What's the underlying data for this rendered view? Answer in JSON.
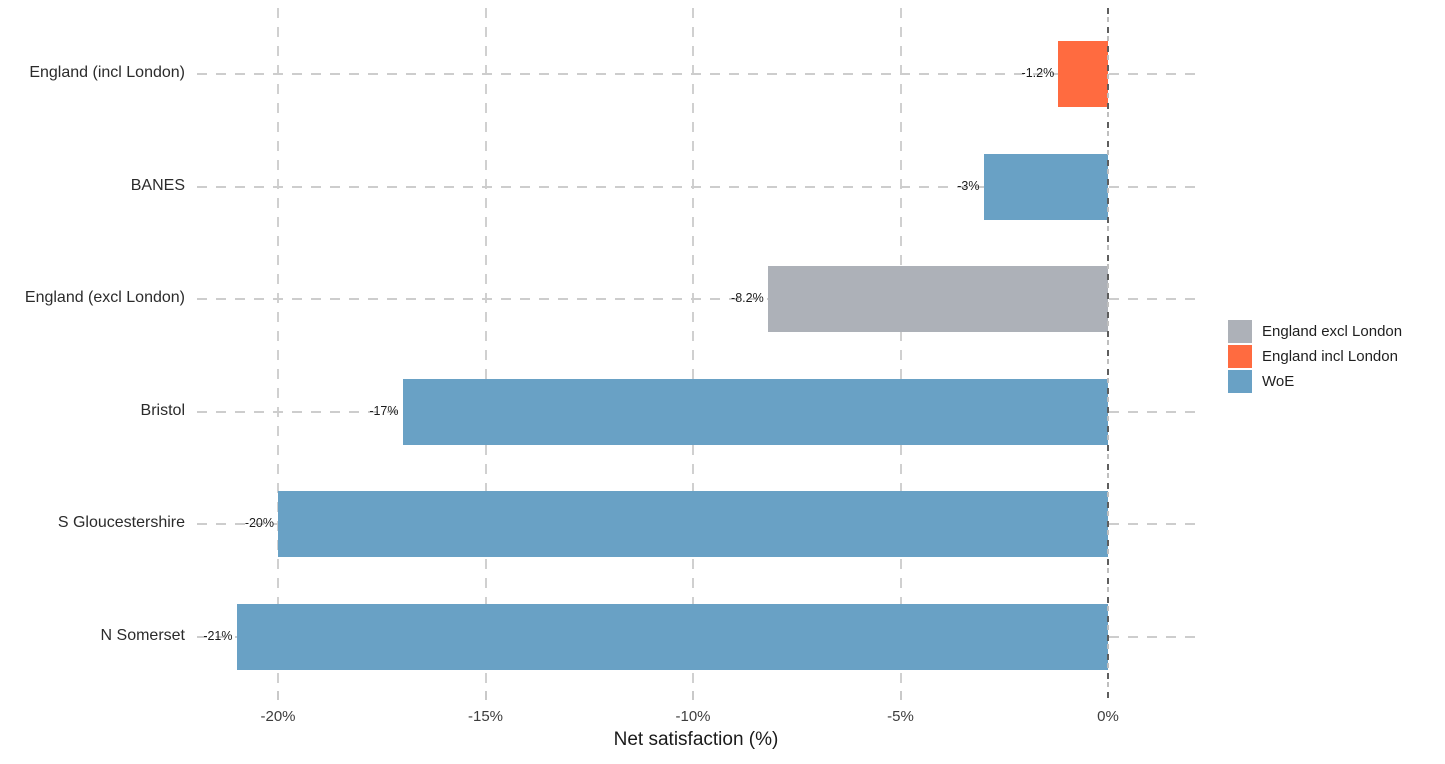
{
  "chart_data": {
    "type": "bar",
    "orientation": "horizontal",
    "title": "",
    "xlabel": "Net satisfaction (%)",
    "ylabel": "",
    "grid": "dashed",
    "xlim": [
      -21.9,
      2.1
    ],
    "categories": [
      "England (incl London)",
      "BANES",
      "England (excl London)",
      "Bristol",
      "S Gloucestershire",
      "N Somerset"
    ],
    "values": [
      -1.2,
      -3,
      -8.2,
      -17,
      -20,
      -21
    ],
    "value_labels": [
      "-1.2%",
      "-3%",
      "-8.2%",
      "-17%",
      "-20%",
      "-21%"
    ],
    "bar_series": [
      "England incl London",
      "WoE",
      "England excl London",
      "WoE",
      "WoE",
      "WoE"
    ],
    "x_ticks": [
      -20,
      -15,
      -10,
      -5,
      0
    ],
    "x_tick_labels": [
      "-20%",
      "-15%",
      "-10%",
      "-5%",
      "0%"
    ],
    "legend": {
      "position": "right",
      "entries": [
        {
          "label": "England excl London",
          "color": "#adb1b8"
        },
        {
          "label": "England incl London",
          "color": "#ff6b40"
        },
        {
          "label": "WoE",
          "color": "#69a1c5"
        }
      ]
    },
    "colors": {
      "gridline": "#cdcdcd",
      "zero_line": "#5e5e5e",
      "text": "#1f1f1f"
    }
  }
}
